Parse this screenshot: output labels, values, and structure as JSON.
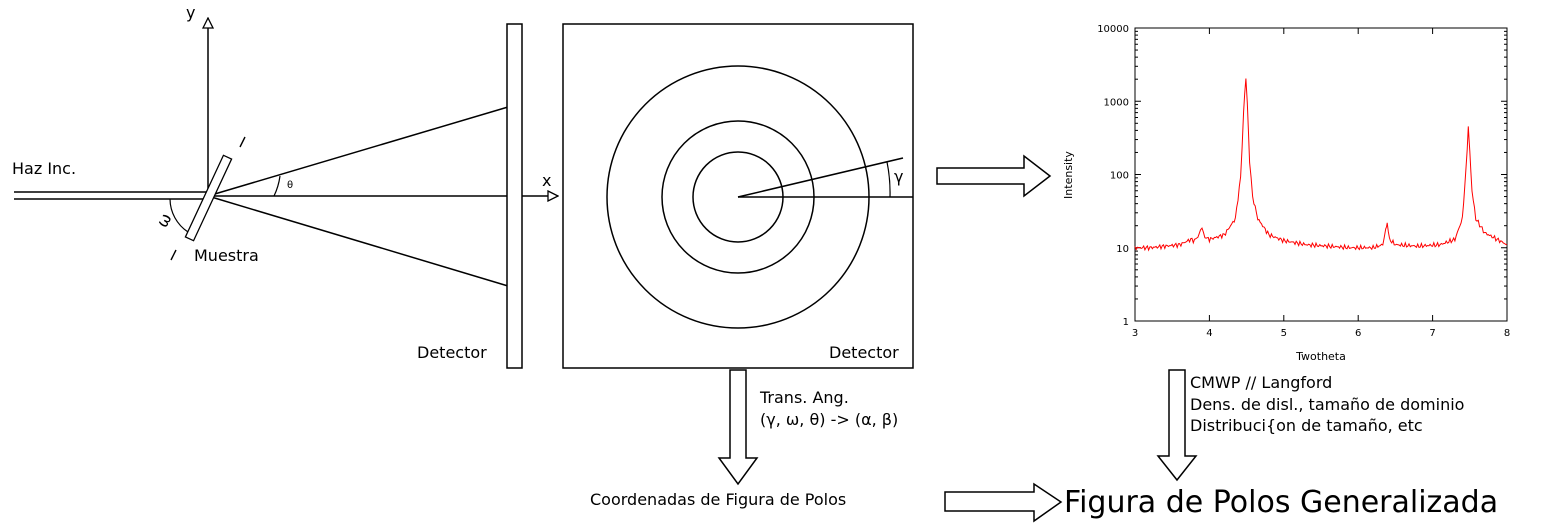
{
  "labels": {
    "y_axis": "y",
    "x_axis": "x",
    "incident_beam": "Haz Inc.",
    "sample": "Muestra",
    "theta": "θ",
    "omega": "ω",
    "gamma": "γ",
    "detector_side": "Detector",
    "detector_face": "Detector"
  },
  "annotations": {
    "transform_line1": "Trans. Ang.",
    "transform_line2": "(γ, ω, θ) -> (α, β)",
    "analysis_line1": "CMWP // Langford",
    "analysis_line2": "Dens. de disl., tamaño de dominio",
    "analysis_line3": "Distribuci{on de tamaño, etc",
    "pole_coords": "Coordenadas de Figura de Polos",
    "result": "Figura de Polos Generalizada"
  },
  "chart_data": {
    "type": "line",
    "xlabel": "Twotheta",
    "ylabel": "Intensity",
    "xlim": [
      3,
      8
    ],
    "ylim": [
      1,
      10000
    ],
    "yscale": "log",
    "x_ticks": [
      "3",
      "4",
      "5",
      "6",
      "7",
      "8"
    ],
    "y_ticks": [
      "1",
      "10",
      "100",
      "1000",
      "10000"
    ],
    "line_color": "#ff0000",
    "grid": false,
    "series": [
      {
        "x": [
          3.0,
          3.2,
          3.4,
          3.6,
          3.75,
          3.8,
          3.86,
          3.9,
          3.94,
          4.0,
          4.2,
          4.35,
          4.42,
          4.46,
          4.49,
          4.51,
          4.54,
          4.58,
          4.65,
          4.8,
          5.0,
          5.3,
          5.6,
          5.9,
          6.2,
          6.33,
          6.37,
          6.39,
          6.42,
          6.5,
          6.8,
          7.1,
          7.3,
          7.4,
          7.45,
          7.48,
          7.5,
          7.53,
          7.58,
          7.7,
          7.9,
          8.0
        ],
        "y": [
          10,
          10,
          10.5,
          11,
          13,
          12.5,
          15,
          19,
          14,
          13,
          15,
          25,
          90,
          700,
          2200,
          900,
          150,
          50,
          25,
          15,
          12.5,
          11,
          10.5,
          10,
          10,
          11,
          18,
          22,
          13,
          11,
          10.5,
          11,
          13,
          25,
          120,
          450,
          200,
          60,
          25,
          16,
          12.5,
          11
        ]
      }
    ]
  }
}
